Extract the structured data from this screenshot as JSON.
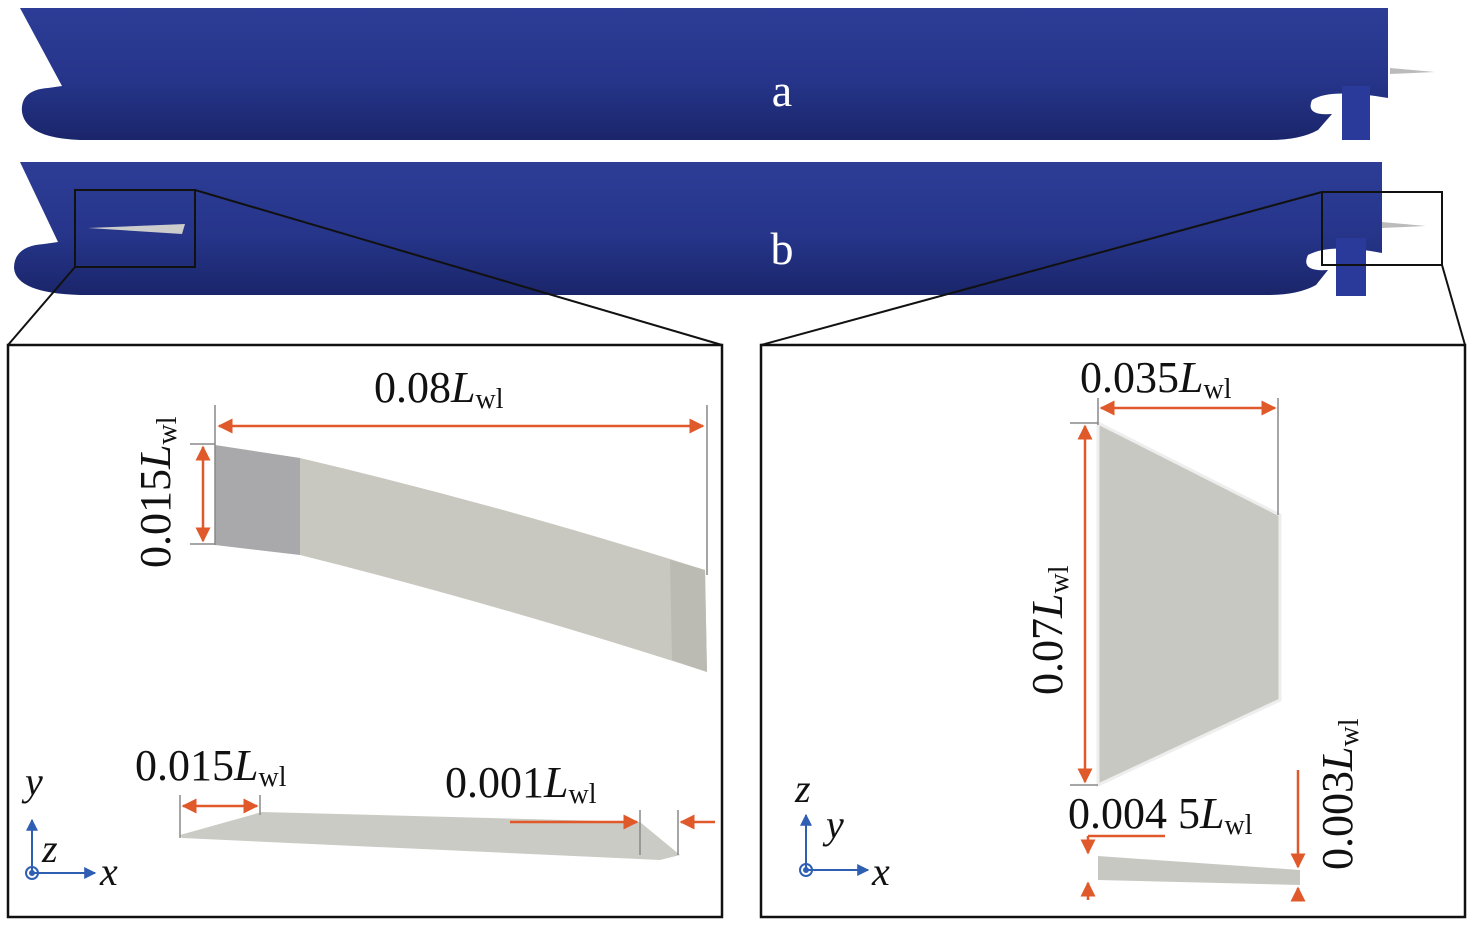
{
  "hulls": {
    "a": "a",
    "b": "b"
  },
  "left_detail": {
    "dimensions": [
      {
        "number": "0.08",
        "symbol": "L",
        "subscript": "wl"
      },
      {
        "number": "0.015",
        "symbol": "L",
        "subscript": "wl"
      },
      {
        "number": "0.015",
        "symbol": "L",
        "subscript": "wl"
      },
      {
        "number": "0.001",
        "symbol": "L",
        "subscript": "wl"
      }
    ],
    "axes": {
      "vertical": "y",
      "depth": "z",
      "horizontal": "x"
    }
  },
  "right_detail": {
    "dimensions": [
      {
        "number": "0.035",
        "symbol": "L",
        "subscript": "wl"
      },
      {
        "number": "0.07",
        "symbol": "L",
        "subscript": "wl"
      },
      {
        "number": "0.004 5",
        "symbol": "L",
        "subscript": "wl"
      },
      {
        "number": "0.003",
        "symbol": "L",
        "subscript": "wl"
      }
    ],
    "axes": {
      "vertical": "z",
      "depth": "y",
      "horizontal": "x"
    }
  }
}
